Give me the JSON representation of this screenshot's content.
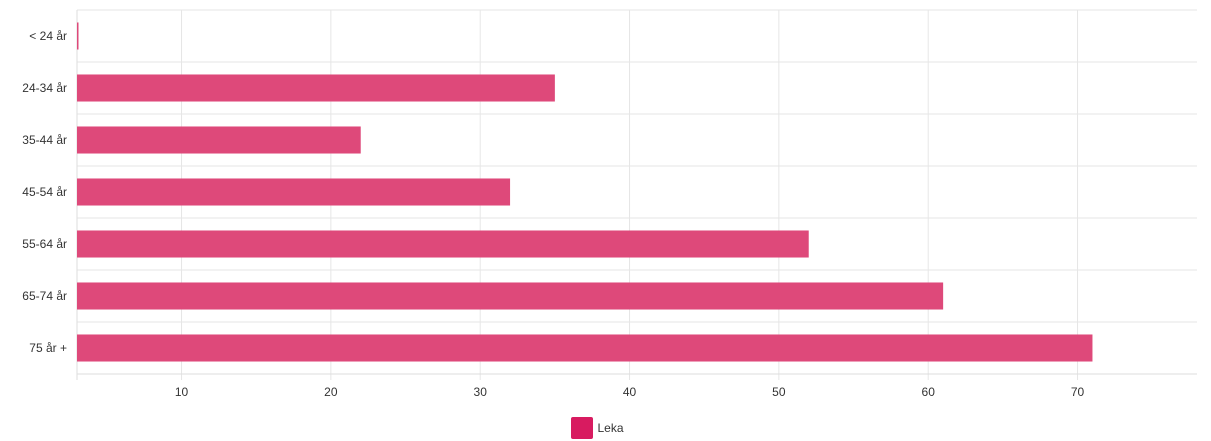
{
  "chart_data": {
    "type": "bar",
    "orientation": "horizontal",
    "categories": [
      "< 24 år",
      "24-34 år",
      "35-44 år",
      "45-54 år",
      "55-64 år",
      "65-74 år",
      "75 år +"
    ],
    "series": [
      {
        "name": "Leka",
        "values": [
          0.1,
          35,
          22,
          32,
          52,
          61,
          71
        ]
      }
    ],
    "xlim": [
      3,
      78
    ],
    "xticks": [
      10,
      20,
      30,
      40,
      50,
      60,
      70
    ],
    "grid": true,
    "legend_position": "bottom-center",
    "colors": {
      "bar": "#de497a",
      "legend": "#d81b60",
      "grid": "#e6e6e6"
    }
  }
}
